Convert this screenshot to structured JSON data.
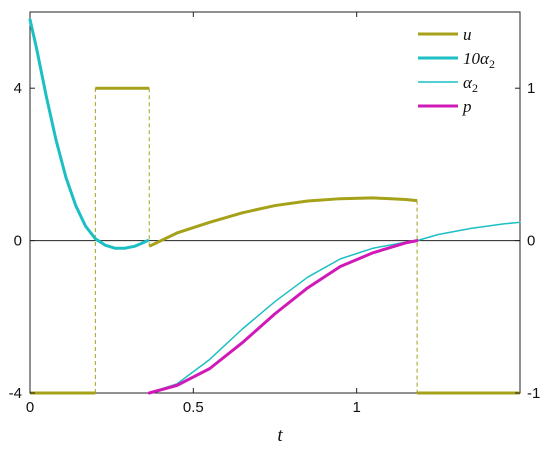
{
  "chart_data": {
    "type": "line",
    "xlabel": "t",
    "xlim": [
      0,
      1.5
    ],
    "ylim_left": [
      -4,
      6
    ],
    "ylim_right": [
      -1,
      1.5
    ],
    "x_ticks": [
      0,
      0.5,
      1
    ],
    "x_tick_labels": [
      "0",
      "0.5",
      "1"
    ],
    "y_left_ticks": [
      -4,
      0,
      4
    ],
    "y_left_tick_labels": [
      "-4",
      "0",
      "4"
    ],
    "y_right_ticks": [
      -1,
      0,
      1
    ],
    "y_right_tick_labels": [
      "-1",
      "0",
      "1"
    ],
    "zero_line": true,
    "grid": false,
    "legend_position": "top-right",
    "legend": [
      {
        "name": "u",
        "style": "thick"
      },
      {
        "name": "10α",
        "sub": "2",
        "style": "thick"
      },
      {
        "name": "α",
        "sub": "2",
        "style": "thin"
      },
      {
        "name": "p",
        "style": "thick"
      }
    ],
    "colors": {
      "u": "#a5a118",
      "alpha": "#1cbfc4",
      "p": "#d119b8"
    },
    "series": [
      {
        "name": "u",
        "axis": "left",
        "width": 3,
        "segments": [
          {
            "x": [
              0,
              0.2
            ],
            "y": [
              -4,
              -4
            ]
          },
          {
            "x": [
              0.2,
              0.365
            ],
            "y": [
              4,
              4
            ]
          },
          {
            "x": [
              0.365,
              0.45,
              0.55,
              0.65,
              0.75,
              0.85,
              0.95,
              1.05,
              1.15,
              1.185
            ],
            "y": [
              -0.15,
              0.2,
              0.48,
              0.73,
              0.92,
              1.04,
              1.1,
              1.12,
              1.08,
              1.05
            ]
          },
          {
            "x": [
              1.185,
              1.5
            ],
            "y": [
              -4,
              -4
            ]
          }
        ],
        "jumps": [
          [
            0.2,
            -4,
            4
          ],
          [
            0.365,
            4,
            -0.15
          ],
          [
            1.185,
            1.05,
            -4
          ]
        ]
      },
      {
        "name": "10α2",
        "axis": "left",
        "width": 3,
        "x": [
          0,
          0.02,
          0.05,
          0.08,
          0.11,
          0.14,
          0.17,
          0.2,
          0.23,
          0.26,
          0.29,
          0.32,
          0.34,
          0.36
        ],
        "y": [
          5.8,
          5.05,
          3.78,
          2.63,
          1.66,
          0.92,
          0.38,
          0.05,
          -0.12,
          -0.2,
          -0.2,
          -0.15,
          -0.08,
          0.0
        ]
      },
      {
        "name": "α2",
        "axis": "right",
        "width": 1.5,
        "x": [
          0.365,
          0.45,
          0.55,
          0.65,
          0.75,
          0.85,
          0.95,
          1.05,
          1.15,
          1.185,
          1.25,
          1.35,
          1.45,
          1.5
        ],
        "y": [
          -1.0,
          -0.94,
          -0.78,
          -0.58,
          -0.4,
          -0.24,
          -0.12,
          -0.05,
          -0.01,
          0.0,
          0.04,
          0.08,
          0.11,
          0.12
        ]
      },
      {
        "name": "p",
        "axis": "right",
        "width": 3,
        "x": [
          0.365,
          0.45,
          0.55,
          0.65,
          0.75,
          0.85,
          0.95,
          1.05,
          1.15,
          1.185
        ],
        "y": [
          -1.0,
          -0.95,
          -0.84,
          -0.67,
          -0.48,
          -0.31,
          -0.17,
          -0.08,
          -0.015,
          0.0
        ]
      }
    ]
  }
}
